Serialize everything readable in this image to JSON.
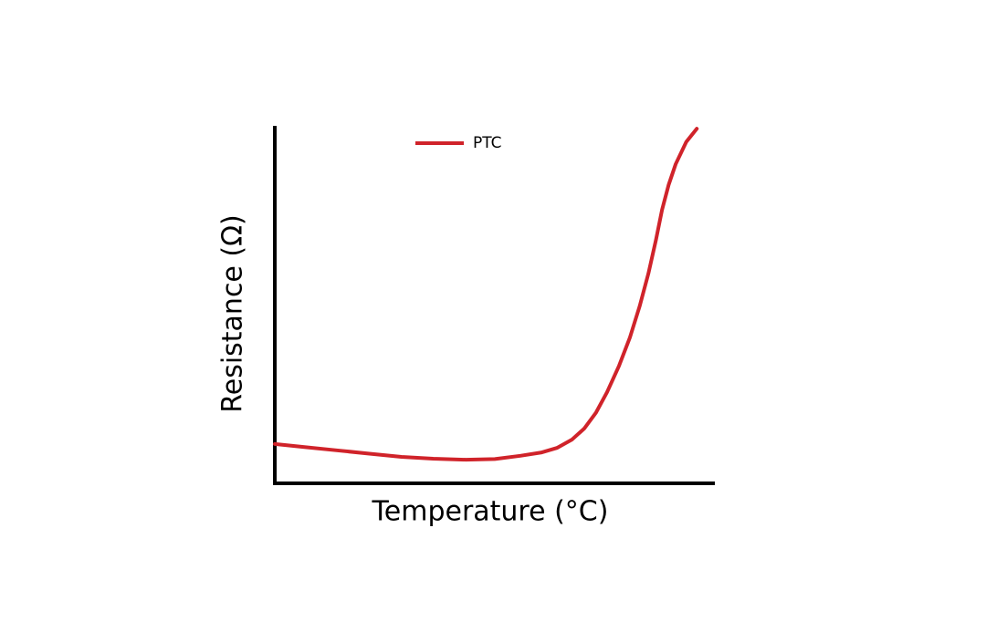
{
  "chart_data": {
    "type": "line",
    "x_label": "Temperature (°C)",
    "y_label": "Resistance (Ω)",
    "x": [
      0,
      7,
      14.3,
      21.5,
      28.8,
      36,
      43.4,
      50,
      55.8,
      60.5,
      64.1,
      67.5,
      70.3,
      73,
      75.5,
      78.2,
      80.7,
      82.9,
      84.9,
      86.6,
      88,
      89.5,
      91.1,
      93.5,
      95.9
    ],
    "series": [
      {
        "name": "PTC",
        "color": "#d0232a",
        "values": [
          11,
          10.1,
          9.2,
          8.3,
          7.4,
          6.9,
          6.6,
          6.8,
          7.7,
          8.6,
          9.9,
          12.2,
          15.3,
          19.8,
          25.5,
          32.8,
          40.8,
          49.5,
          58.7,
          68,
          76.5,
          83.5,
          89.3,
          95.5,
          99.2
        ]
      }
    ],
    "xlim": [
      0,
      100
    ],
    "ylim": [
      0,
      100
    ]
  }
}
